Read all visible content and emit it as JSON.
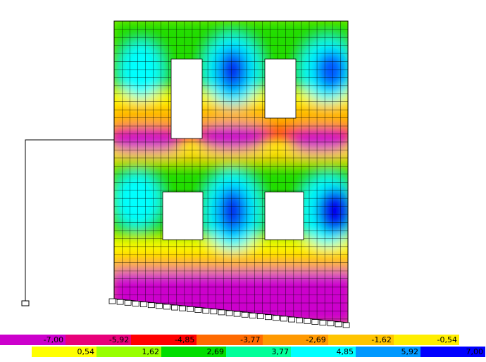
{
  "legend": {
    "negative": [
      {
        "label": "-7,00",
        "color": "#cc00cc"
      },
      {
        "label": "-5,92",
        "color": "#e8007a"
      },
      {
        "label": "-4,85",
        "color": "#ff0000"
      },
      {
        "label": "-3,77",
        "color": "#ff6a00"
      },
      {
        "label": "-2,69",
        "color": "#ff9900"
      },
      {
        "label": "-1,62",
        "color": "#ffc400"
      },
      {
        "label": "-0,54",
        "color": "#ffee00"
      }
    ],
    "positive": [
      {
        "label": "0,54",
        "color": "#ffff00"
      },
      {
        "label": "1,62",
        "color": "#99ff00"
      },
      {
        "label": "2,69",
        "color": "#00dd00"
      },
      {
        "label": "3,77",
        "color": "#00ff99"
      },
      {
        "label": "4,85",
        "color": "#00ffff"
      },
      {
        "label": "5,92",
        "color": "#0099ff"
      },
      {
        "label": "7,00",
        "color": "#0000ff"
      }
    ]
  }
}
